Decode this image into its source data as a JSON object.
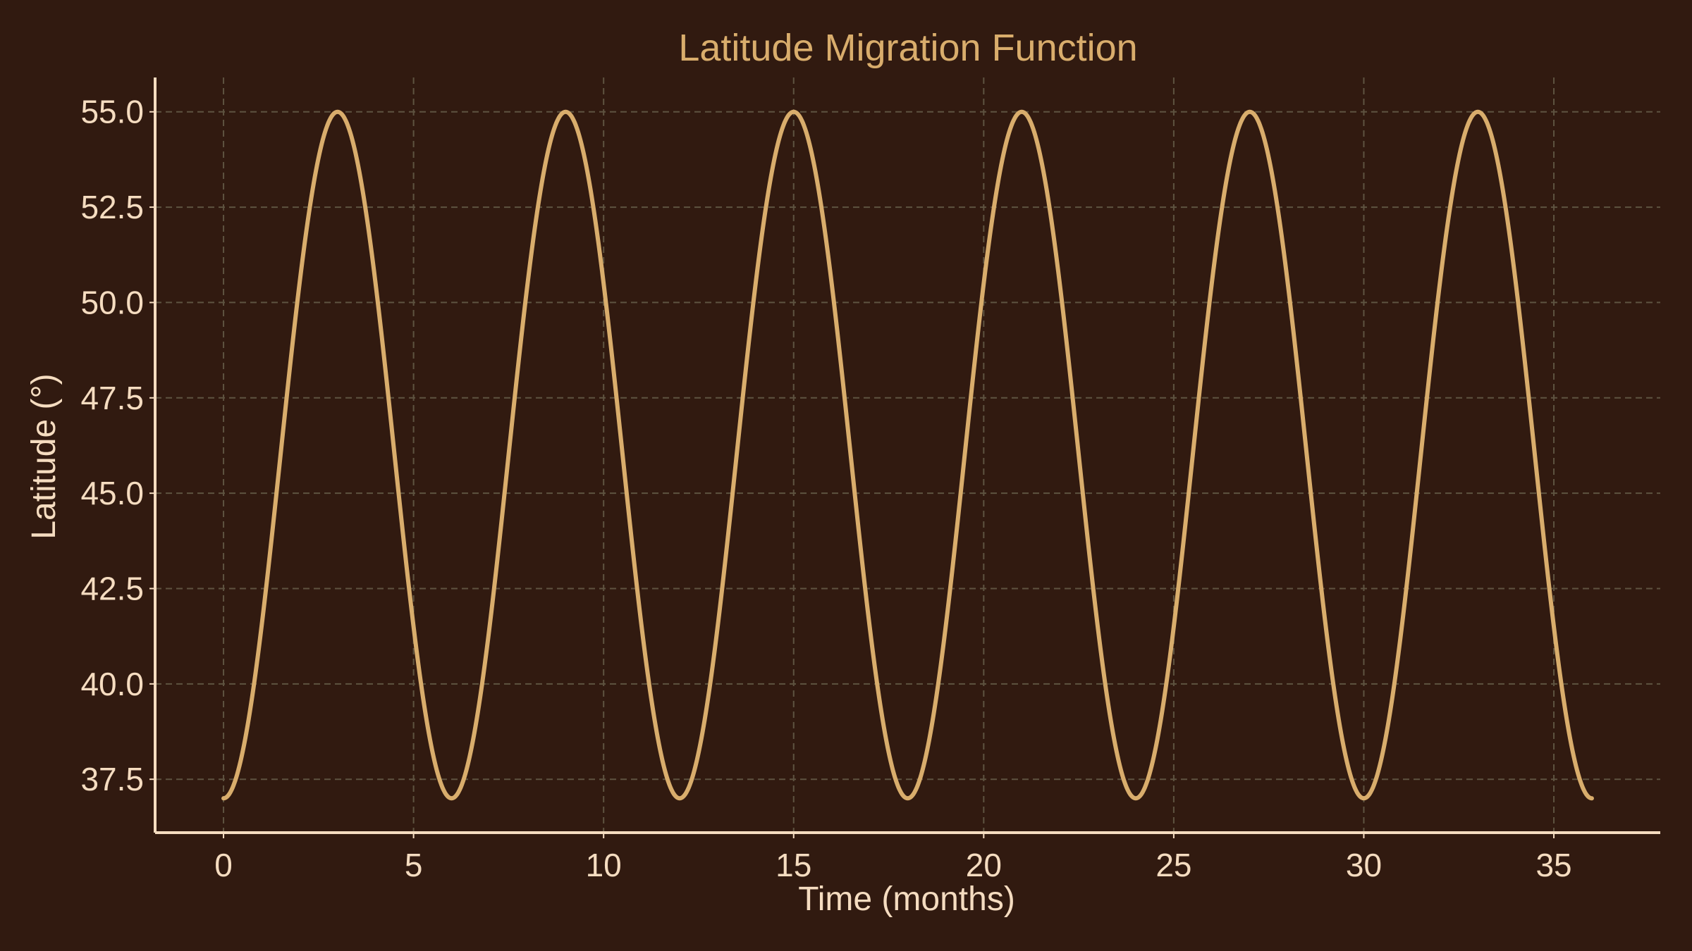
{
  "chart_data": {
    "type": "line",
    "title": "Latitude Migration Function",
    "xlabel": "Time (months)",
    "ylabel": "Latitude (°)",
    "xlim": [
      -1.8,
      37.8
    ],
    "ylim": [
      36.1,
      55.9
    ],
    "x_ticks": [
      0,
      5,
      10,
      15,
      20,
      25,
      30,
      35
    ],
    "y_ticks": [
      37.5,
      40.0,
      42.5,
      45.0,
      47.5,
      50.0,
      52.5,
      55.0
    ],
    "grid": true,
    "line_color": "#d9ad6c",
    "series": [
      {
        "x_start": 0,
        "x_end": 36,
        "period": 6,
        "min": 37.0,
        "max": 55.0,
        "peaks_x": [
          3,
          9,
          15,
          21,
          27,
          33
        ],
        "troughs_x": [
          0,
          6,
          12,
          18,
          24,
          30,
          36
        ]
      }
    ]
  }
}
